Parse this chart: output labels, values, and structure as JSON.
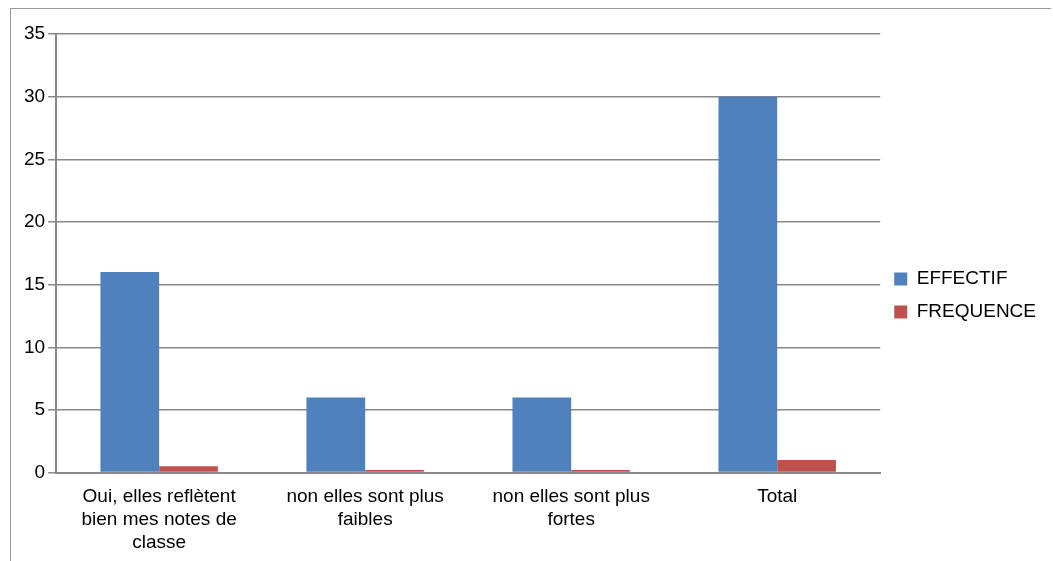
{
  "chart_data": {
    "type": "bar",
    "categories": [
      "Oui, elles reflètent bien mes notes de classe",
      "non elles sont plus faibles",
      "non elles sont plus fortes",
      "Total"
    ],
    "series": [
      {
        "name": "EFFECTIF",
        "color": "#4f81bd",
        "values": [
          16,
          6,
          6,
          30
        ]
      },
      {
        "name": "FREQUENCE",
        "color": "#c0504d",
        "values": [
          0.5,
          0.2,
          0.2,
          1
        ]
      }
    ],
    "ylim": [
      0,
      35
    ],
    "yticks": [
      0,
      5,
      10,
      15,
      20,
      25,
      30,
      35
    ],
    "grid": "y",
    "legend": "right"
  }
}
